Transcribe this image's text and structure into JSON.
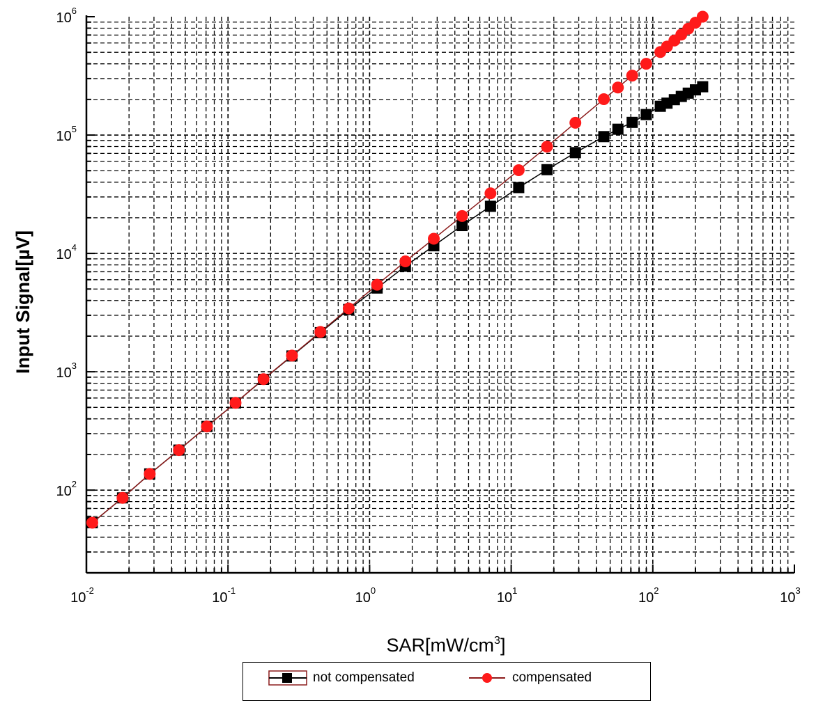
{
  "chart_data": {
    "type": "scatter",
    "title": "",
    "xlabel": "SAR[mW/cm",
    "xlabel_sup": "3",
    "xlabel_end": "]",
    "ylabel": "Input Signal[µV]",
    "x_scale": "log",
    "y_scale": "log",
    "xlim": [
      0.01,
      1000
    ],
    "ylim": [
      20,
      1000000
    ],
    "grid": true,
    "x_ticks": [
      {
        "base": "10",
        "exp": "-2",
        "value": 0.01
      },
      {
        "base": "10",
        "exp": "-1",
        "value": 0.1
      },
      {
        "base": "10",
        "exp": "0",
        "value": 1
      },
      {
        "base": "10",
        "exp": "1",
        "value": 10
      },
      {
        "base": "10",
        "exp": "2",
        "value": 100
      },
      {
        "base": "10",
        "exp": "3",
        "value": 1000
      }
    ],
    "y_ticks": [
      {
        "base": "10",
        "exp": "2",
        "value": 100
      },
      {
        "base": "10",
        "exp": "3",
        "value": 1000
      },
      {
        "base": "10",
        "exp": "4",
        "value": 10000
      },
      {
        "base": "10",
        "exp": "5",
        "value": 100000
      },
      {
        "base": "10",
        "exp": "6",
        "value": 1000000
      }
    ],
    "legend_position": "bottom",
    "series": [
      {
        "name": "not compensated",
        "color": "#000000",
        "line_color": "#000000",
        "marker": "square",
        "x": [
          0.011,
          0.018,
          0.028,
          0.045,
          0.071,
          0.113,
          0.178,
          0.283,
          0.449,
          0.712,
          1.13,
          1.79,
          2.84,
          4.5,
          7.14,
          11.3,
          17.9,
          28.4,
          45.1,
          56.7,
          71.5,
          89.9,
          113,
          126,
          142,
          159,
          178,
          200,
          225
        ],
        "y": [
          53,
          86,
          137,
          218,
          345,
          546,
          863,
          1360,
          2140,
          3360,
          5100,
          7800,
          11600,
          17200,
          25000,
          36000,
          51000,
          71000,
          97000,
          112000,
          128000,
          149000,
          175000,
          186000,
          199000,
          212000,
          226000,
          241000,
          256000
        ]
      },
      {
        "name": "compensated",
        "color": "#ff1a1a",
        "line_color": "#8b1a1a",
        "marker": "circle",
        "x": [
          0.011,
          0.018,
          0.028,
          0.045,
          0.071,
          0.113,
          0.178,
          0.283,
          0.449,
          0.712,
          1.13,
          1.79,
          2.84,
          4.5,
          7.14,
          11.3,
          17.9,
          28.4,
          45.1,
          56.7,
          71.5,
          89.9,
          113,
          126,
          142,
          159,
          178,
          200,
          225
        ],
        "y": [
          53,
          86,
          137,
          218,
          345,
          546,
          866,
          1370,
          2170,
          3430,
          5430,
          8570,
          13300,
          20700,
          32200,
          50500,
          79800,
          127000,
          201000,
          252000,
          318000,
          400000,
          503000,
          560000,
          629000,
          706000,
          792000,
          890000,
          1000000
        ]
      }
    ]
  }
}
